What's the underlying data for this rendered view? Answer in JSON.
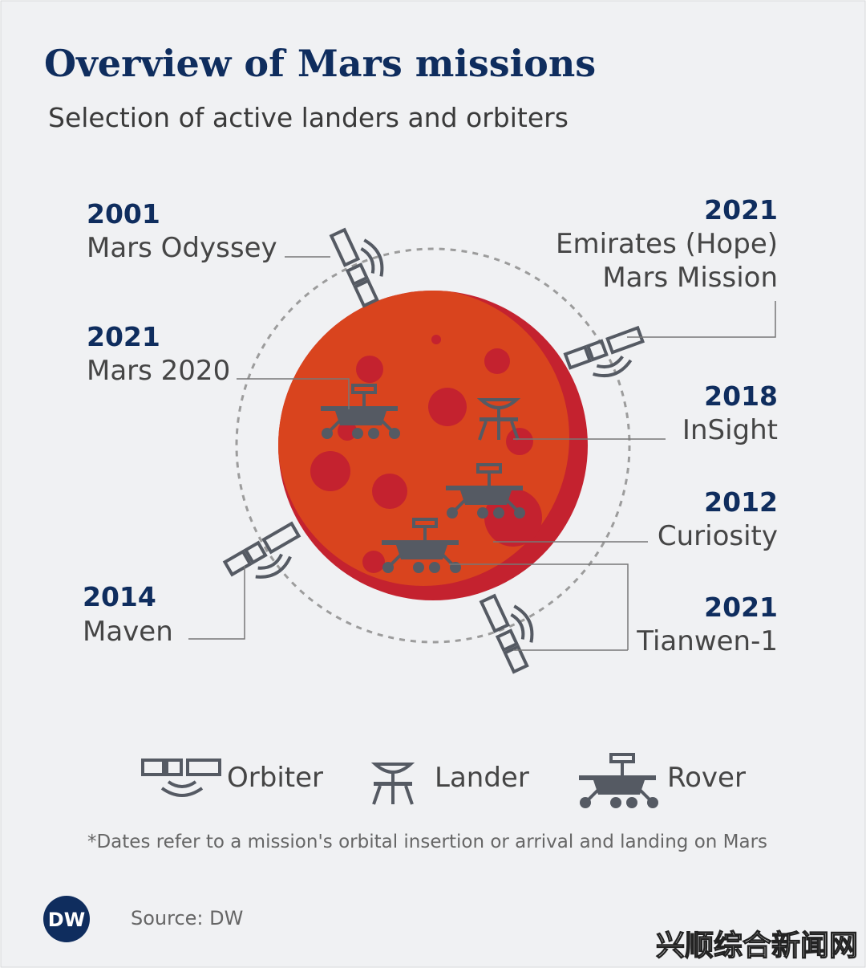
{
  "header": {
    "title": "Overview of Mars missions",
    "subtitle": "Selection of active landers and orbiters"
  },
  "missions": [
    {
      "year": "2001",
      "name": [
        "Mars Odyssey"
      ]
    },
    {
      "year": "2021",
      "name": [
        "Mars 2020"
      ]
    },
    {
      "year": "2014",
      "name": [
        "Maven"
      ]
    },
    {
      "year": "2021",
      "name": [
        "Emirates (Hope)",
        "Mars Mission"
      ]
    },
    {
      "year": "2018",
      "name": [
        "InSight"
      ]
    },
    {
      "year": "2012",
      "name": [
        "Curiosity"
      ]
    },
    {
      "year": "2021",
      "name": [
        "Tianwen-1"
      ]
    }
  ],
  "legend": [
    "Orbiter",
    "Lander",
    "Rover"
  ],
  "footnote": "*Dates refer to a mission's orbital insertion or arrival and landing on Mars",
  "footer": {
    "logo": "DW",
    "source": "Source: DW",
    "watermark": "兴顺综合新闻网"
  }
}
